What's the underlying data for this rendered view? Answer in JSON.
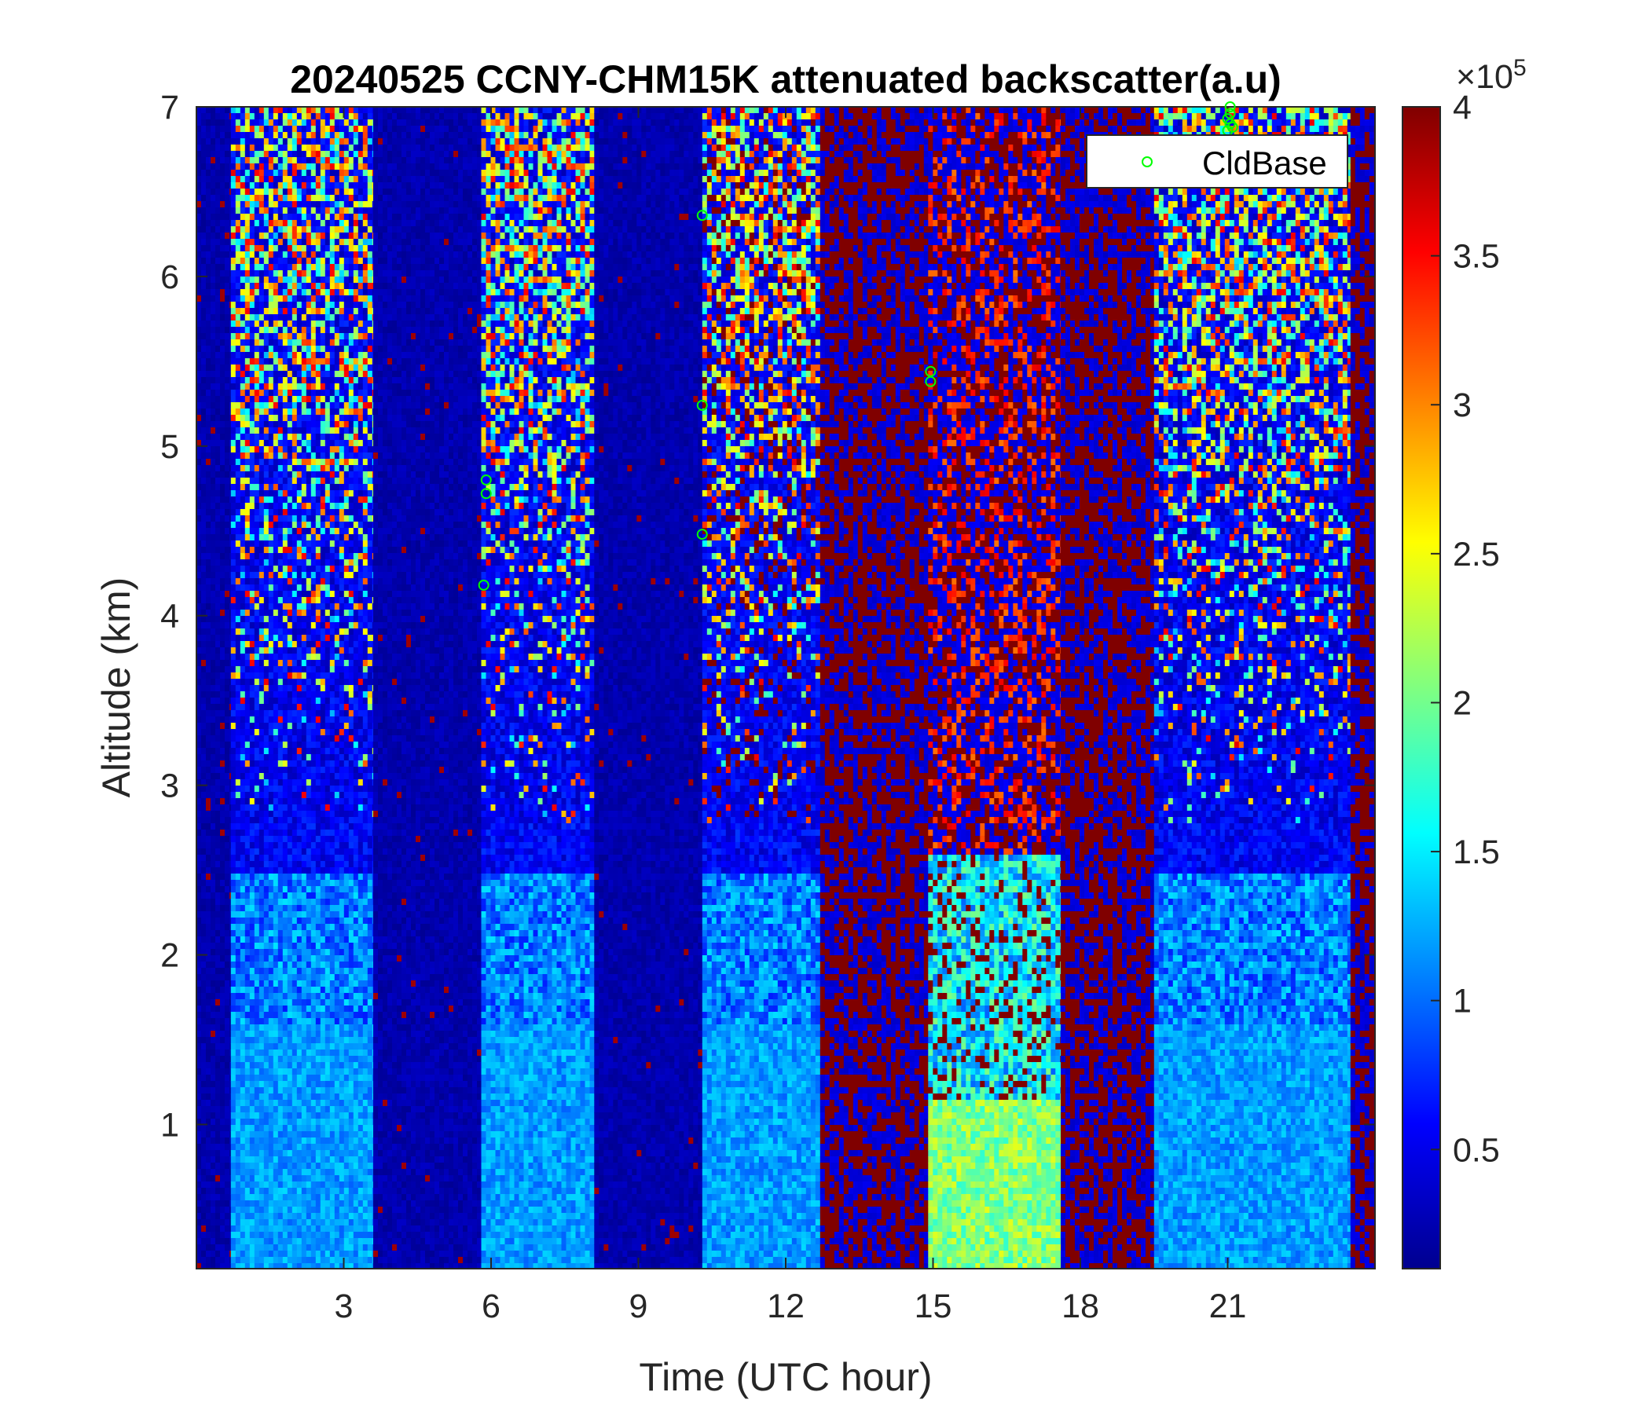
{
  "chart_data": {
    "type": "heatmap",
    "title": "20240525 CCNY-CHM15K attenuated backscatter(a.u)",
    "xlabel": "Time (UTC hour)",
    "ylabel": "Altitude (km)",
    "xlim": [
      0,
      24
    ],
    "ylim": [
      0.15,
      7
    ],
    "x_ticks": [
      3,
      6,
      9,
      12,
      15,
      18,
      21
    ],
    "y_ticks": [
      1,
      2,
      3,
      4,
      5,
      6,
      7
    ],
    "colormap": "jet",
    "clim": [
      10000,
      400000
    ],
    "colorbar": {
      "ticks": [
        0.5,
        1,
        1.5,
        2,
        2.5,
        3,
        3.5,
        4
      ],
      "tick_labels": [
        "0.5",
        "1",
        "1.5",
        "2",
        "2.5",
        "3",
        "3.5",
        "4"
      ],
      "multiplier_base": "×10",
      "multiplier_exp": "5"
    },
    "legend": {
      "position": "top-right",
      "entries": [
        "CldBase"
      ]
    },
    "background_regimes": [
      {
        "x_start": 0.0,
        "x_end": 0.7,
        "regime": "low"
      },
      {
        "x_start": 0.7,
        "x_end": 3.6,
        "regime": "aerosol"
      },
      {
        "x_start": 3.6,
        "x_end": 5.8,
        "regime": "low"
      },
      {
        "x_start": 5.8,
        "x_end": 8.1,
        "regime": "aerosol"
      },
      {
        "x_start": 8.1,
        "x_end": 10.3,
        "regime": "low"
      },
      {
        "x_start": 10.3,
        "x_end": 12.7,
        "regime": "aerosol-noisy"
      },
      {
        "x_start": 12.7,
        "x_end": 14.9,
        "regime": "saturated"
      },
      {
        "x_start": 14.9,
        "x_end": 17.6,
        "regime": "bright-bl"
      },
      {
        "x_start": 17.6,
        "x_end": 19.5,
        "regime": "saturated"
      },
      {
        "x_start": 19.5,
        "x_end": 23.5,
        "regime": "aerosol"
      },
      {
        "x_start": 23.5,
        "x_end": 24.0,
        "regime": "saturated"
      }
    ],
    "series": [
      {
        "name": "CldBase",
        "color": "#00ff00",
        "points": [
          {
            "x": 5.9,
            "y": 4.8
          },
          {
            "x": 5.9,
            "y": 4.72
          },
          {
            "x": 5.85,
            "y": 4.18
          },
          {
            "x": 10.3,
            "y": 6.36
          },
          {
            "x": 10.3,
            "y": 5.24
          },
          {
            "x": 10.3,
            "y": 4.48
          },
          {
            "x": 14.95,
            "y": 5.44
          },
          {
            "x": 14.95,
            "y": 5.38
          },
          {
            "x": 21.05,
            "y": 7.0
          },
          {
            "x": 21.05,
            "y": 6.96
          },
          {
            "x": 21.0,
            "y": 6.93
          },
          {
            "x": 21.05,
            "y": 6.9
          },
          {
            "x": 21.1,
            "y": 6.88
          },
          {
            "x": 21.0,
            "y": 6.86
          }
        ]
      }
    ]
  },
  "colors": {
    "axis": "#262626",
    "cloud_marker": "#00ff00",
    "background_low": "#00008f"
  }
}
